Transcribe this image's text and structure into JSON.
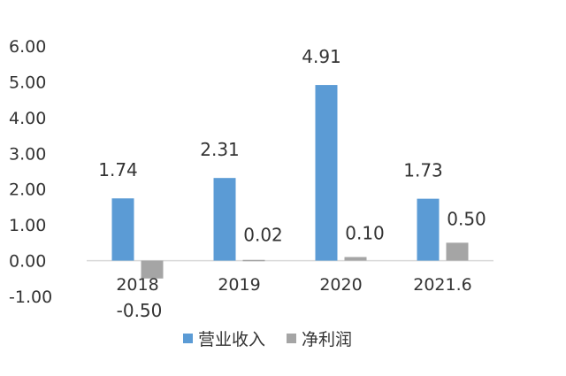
{
  "chart_data": {
    "type": "bar",
    "categories": [
      "2018",
      "2019",
      "2020",
      "2021.6"
    ],
    "series": [
      {
        "name": "营业收入",
        "values": [
          1.74,
          2.31,
          4.91,
          1.73
        ],
        "labels": [
          "1.74",
          "2.31",
          "4.91",
          "1.73"
        ],
        "color": "#5b9bd5"
      },
      {
        "name": "净利润",
        "values": [
          -0.5,
          0.02,
          0.1,
          0.5
        ],
        "labels": [
          "-0.50",
          "0.02",
          "0.10",
          "0.50"
        ],
        "color": "#a5a5a5"
      }
    ],
    "yticks": [
      "6.00",
      "5.00",
      "4.00",
      "3.00",
      "2.00",
      "1.00",
      "0.00",
      "-1.00"
    ],
    "ylim": [
      -1,
      6
    ],
    "grid": false,
    "legend": "bottom"
  },
  "colors": {
    "axis": "#d9d9d9",
    "text": "#333333"
  }
}
